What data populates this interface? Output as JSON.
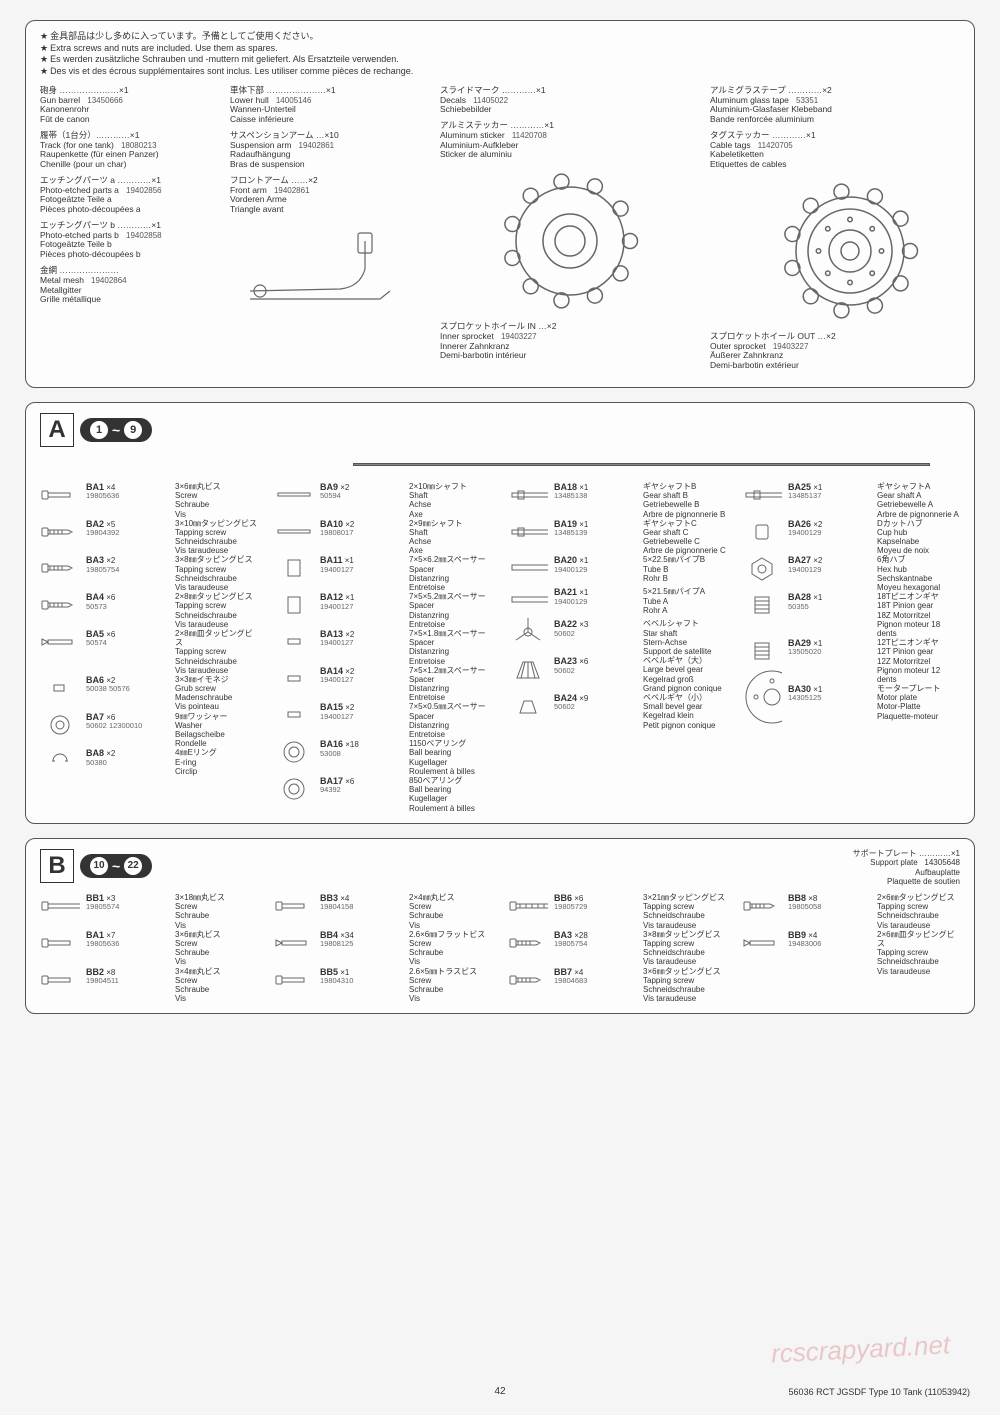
{
  "notes": {
    "jp": "金具部品は少し多めに入っています。予備としてご使用ください。",
    "en": "Extra screws and nuts are included. Use them as spares.",
    "de": "Es werden zusätzliche Schrauben und -muttern mit geliefert. Als Ersatzteile verwenden.",
    "fr": "Des vis et des écrous supplémentaires sont inclus. Les utiliser comme pièces de rechange."
  },
  "topParts": {
    "col1": [
      {
        "jp": "砲身 …………………×1",
        "en": "Gun barrel",
        "de": "Kanonenrohr",
        "fr": "Fût de canon",
        "num": "13450666"
      },
      {
        "jp": "履帯（1台分）…………×1",
        "en": "Track (for one tank)",
        "de": "Raupenkette (für einen Panzer)",
        "fr": "Chenille (pour un char)",
        "num": "18080213"
      },
      {
        "jp": "エッチングパーツ a …………×1",
        "en": "Photo-etched parts a",
        "de": "Fotogeätzte Teile a",
        "fr": "Pièces photo-découpées a",
        "num": "19402856"
      },
      {
        "jp": "エッチングパーツ b …………×1",
        "en": "Photo-etched parts b",
        "de": "Fotogeätzte Teile b",
        "fr": "Pièces photo-découpées b",
        "num": "19402858"
      },
      {
        "jp": "金網 …………………",
        "en": "Metal mesh",
        "de": "Metallgitter",
        "fr": "Grille métallique",
        "num": "19402864"
      }
    ],
    "col2": [
      {
        "jp": "車体下部 …………………×1",
        "en": "Lower hull",
        "de": "Wannen-Unterteil",
        "fr": "Caisse inférieure",
        "num": "14005146"
      },
      {
        "jp": "サスペンションアーム …×10",
        "en": "Suspension arm",
        "de": "Radaufhängung",
        "fr": "Bras de suspension",
        "num": "19402861"
      },
      {
        "jp": "フロントアーム ……×2",
        "en": "Front arm",
        "de": "Vorderen Arme",
        "fr": "Triangle avant",
        "num": "19402861"
      }
    ],
    "col3a": [
      {
        "jp": "スライドマーク …………×1",
        "en": "Decals",
        "de": "Schiebebilder",
        "fr": "",
        "num": "11405022"
      },
      {
        "jp": "アルミステッカー …………×1",
        "en": "Aluminum sticker",
        "de": "Aluminium-Aufkleber",
        "fr": "Sticker de aluminiu",
        "num": "11420708"
      }
    ],
    "col3b": {
      "jp": "スプロケットホイール IN …×2",
      "en": "Inner sprocket",
      "de": "Innerer Zahnkranz",
      "fr": "Demi-barbotin intérieur",
      "num": "19403227"
    },
    "col4a": [
      {
        "jp": "アルミグラステープ …………×2",
        "en": "Aluminum glass tape",
        "de": "Aluminium-Glasfaser Klebeband",
        "fr": "Bande renforcée aluminium",
        "num": "53351"
      },
      {
        "jp": "タグステッカー …………×1",
        "en": "Cable tags",
        "de": "Kabeletiketten",
        "fr": "Etiquettes de cables",
        "num": "11420705"
      }
    ],
    "col4b": {
      "jp": "スプロケットホイール OUT …×2",
      "en": "Outer sprocket",
      "de": "Äußerer Zahnkranz",
      "fr": "Demi-barbotin extérieur",
      "num": "19403227"
    }
  },
  "sectionA": {
    "letter": "A",
    "range": "1 ~ 9",
    "cols": [
      [
        {
          "code": "BA1",
          "qty": "×4",
          "num": "19805636",
          "jp": "3×6㎜丸ビス",
          "en": "Screw",
          "de": "Schraube",
          "fr": "Vis",
          "icon": "screw"
        },
        {
          "code": "BA2",
          "qty": "×5",
          "num": "19804392",
          "jp": "3×10㎜タッピングビス",
          "en": "Tapping screw",
          "de": "Schneidschraube",
          "fr": "Vis taraudeuse",
          "icon": "tscrew"
        },
        {
          "code": "BA3",
          "qty": "×2",
          "num": "19805754",
          "jp": "3×8㎜タッピングビス",
          "en": "Tapping screw",
          "de": "Schneidschraube",
          "fr": "Vis taraudeuse",
          "icon": "tscrew"
        },
        {
          "code": "BA4",
          "qty": "×6",
          "num": "50573",
          "jp": "2×8㎜タッピングビス",
          "en": "Tapping screw",
          "de": "Schneidschraube",
          "fr": "Vis taraudeuse",
          "icon": "tscrew"
        },
        {
          "code": "BA5",
          "qty": "×6",
          "num": "50574",
          "jp": "2×8㎜皿タッピングビス",
          "en": "Tapping screw",
          "de": "Schneidschraube",
          "fr": "Vis taraudeuse",
          "icon": "fscrew"
        },
        {
          "code": "BA6",
          "qty": "×2",
          "num": "50038 50576",
          "jp": "3×3㎜イモネジ",
          "en": "Grub screw",
          "de": "Madenschraube",
          "fr": "Vis pointeau",
          "icon": "grub"
        },
        {
          "code": "BA7",
          "qty": "×6",
          "num": "50602 12300010",
          "jp": "9㎜ワッシャー",
          "en": "Washer",
          "de": "Beilagscheibe",
          "fr": "Rondelle",
          "icon": "washer"
        },
        {
          "code": "BA8",
          "qty": "×2",
          "num": "50380",
          "jp": "4㎜Eリング",
          "en": "E-ring",
          "de": "",
          "fr": "Circlip",
          "icon": "ering"
        }
      ],
      [
        {
          "code": "BA9",
          "qty": "×2",
          "num": "50594",
          "jp": "2×10㎜シャフト",
          "en": "Shaft",
          "de": "Achse",
          "fr": "Axe",
          "icon": "shaft"
        },
        {
          "code": "BA10",
          "qty": "×2",
          "num": "19808017",
          "jp": "2×9㎜シャフト",
          "en": "Shaft",
          "de": "Achse",
          "fr": "Axe",
          "icon": "shaft"
        },
        {
          "code": "BA11",
          "qty": "×1",
          "num": "19400127",
          "jp": "7×5×6.2㎜スペーサー",
          "en": "Spacer",
          "de": "Distanzring",
          "fr": "Entretoise",
          "icon": "spacer"
        },
        {
          "code": "BA12",
          "qty": "×1",
          "num": "19400127",
          "jp": "7×5×5.2㎜スペーサー",
          "en": "Spacer",
          "de": "Distanzring",
          "fr": "Entretoise",
          "icon": "spacer"
        },
        {
          "code": "BA13",
          "qty": "×2",
          "num": "19400127",
          "jp": "7×5×1.8㎜スペーサー",
          "en": "Spacer",
          "de": "Distanzring",
          "fr": "Entretoise",
          "icon": "spacer-s"
        },
        {
          "code": "BA14",
          "qty": "×2",
          "num": "19400127",
          "jp": "7×5×1.2㎜スペーサー",
          "en": "Spacer",
          "de": "Distanzring",
          "fr": "Entretoise",
          "icon": "spacer-s"
        },
        {
          "code": "BA15",
          "qty": "×2",
          "num": "19400127",
          "jp": "7×5×0.5㎜スペーサー",
          "en": "Spacer",
          "de": "Distanzring",
          "fr": "Entretoise",
          "icon": "spacer-s"
        },
        {
          "code": "BA16",
          "qty": "×18",
          "num": "53008",
          "jp": "1150ベアリング",
          "en": "Ball bearing",
          "de": "Kugellager",
          "fr": "Roulement à billes",
          "icon": "bearing"
        },
        {
          "code": "BA17",
          "qty": "×6",
          "num": "94392",
          "jp": "850ベアリング",
          "en": "Ball bearing",
          "de": "Kugellager",
          "fr": "Roulement à billes",
          "icon": "bearing"
        }
      ],
      [
        {
          "code": "BA18",
          "qty": "×1",
          "num": "13485138",
          "jp": "ギヤシャフトB",
          "en": "Gear shaft B",
          "de": "Getriebewelle B",
          "fr": "Arbre de pignonnerie B",
          "icon": "gshaft"
        },
        {
          "code": "BA19",
          "qty": "×1",
          "num": "13485139",
          "jp": "ギヤシャフトC",
          "en": "Gear shaft C",
          "de": "Getriebewelle C",
          "fr": "Arbre de pignonnerie C",
          "icon": "gshaft"
        },
        {
          "code": "BA20",
          "qty": "×1",
          "num": "19400129",
          "jp": "5×22.5㎜パイプB",
          "en": "Tube B",
          "de": "Rohr B",
          "fr": "",
          "icon": "tube"
        },
        {
          "code": "BA21",
          "qty": "×1",
          "num": "19400129",
          "jp": "5×21.5㎜パイプA",
          "en": "Tube A",
          "de": "Rohr A",
          "fr": "",
          "icon": "tube"
        },
        {
          "code": "BA22",
          "qty": "×3",
          "num": "50602",
          "jp": "ベベルシャフト",
          "en": "Star shaft",
          "de": "Stern-Achse",
          "fr": "Support de satellite",
          "icon": "star"
        },
        {
          "code": "BA23",
          "qty": "×6",
          "num": "50602",
          "jp": "ベベルギヤ（大）",
          "en": "Large bevel gear",
          "de": "Kegelrad groß",
          "fr": "Grand pignon conique",
          "icon": "bevel-l"
        },
        {
          "code": "BA24",
          "qty": "×9",
          "num": "50602",
          "jp": "ベベルギヤ（小）",
          "en": "Small bevel gear",
          "de": "Kegelrad klein",
          "fr": "Petit pignon conique",
          "icon": "bevel-s"
        }
      ],
      [
        {
          "code": "BA25",
          "qty": "×1",
          "num": "13485137",
          "jp": "ギヤシャフトA",
          "en": "Gear shaft A",
          "de": "Getriebewelle A",
          "fr": "Arbre de pignonnerie A",
          "icon": "gshaft-l"
        },
        {
          "code": "BA26",
          "qty": "×2",
          "num": "19400129",
          "jp": "Dカットハブ",
          "en": "Cup hub",
          "de": "Kapselnabe",
          "fr": "Moyeu de noix",
          "icon": "cup"
        },
        {
          "code": "BA27",
          "qty": "×2",
          "num": "19400129",
          "jp": "6角ハブ",
          "en": "Hex hub",
          "de": "Sechskantnabe",
          "fr": "Moyeu hexagonal",
          "icon": "hex"
        },
        {
          "code": "BA28",
          "qty": "×1",
          "num": "50355",
          "jp": "18Tピニオンギヤ",
          "en": "18T Pinion gear",
          "de": "18Z Motorritzel",
          "fr": "Pignon moteur 18 dents",
          "icon": "pinion"
        },
        {
          "code": "BA29",
          "qty": "×1",
          "num": "13505020",
          "jp": "12Tピニオンギヤ",
          "en": "12T Pinion gear",
          "de": "12Z Motorritzel",
          "fr": "Pignon moteur 12 dents",
          "icon": "pinion"
        },
        {
          "code": "BA30",
          "qty": "×1",
          "num": "14305125",
          "jp": "モータープレート",
          "en": "Motor plate",
          "de": "Motor-Platte",
          "fr": "Plaquette-moteur",
          "icon": "mplate"
        }
      ]
    ]
  },
  "sectionB": {
    "letter": "B",
    "range": "10 ~ 22",
    "support": {
      "jp": "サポートプレート …………×1",
      "en": "Support plate",
      "de": "Aufbauplatte",
      "fr": "Plaquette de soutien",
      "num": "14305648"
    },
    "cols": [
      [
        {
          "code": "BB1",
          "qty": "×3",
          "num": "19805574",
          "jp": "3×18㎜丸ビス",
          "en": "Screw",
          "de": "Schraube",
          "fr": "Vis",
          "icon": "screw-l"
        },
        {
          "code": "BA1",
          "qty": "×7",
          "num": "19805636",
          "jp": "3×6㎜丸ビス",
          "en": "Screw",
          "de": "Schraube",
          "fr": "Vis",
          "icon": "screw"
        },
        {
          "code": "BB2",
          "qty": "×8",
          "num": "19804511",
          "jp": "3×4㎜丸ビス",
          "en": "Screw",
          "de": "Schraube",
          "fr": "Vis",
          "icon": "screw"
        }
      ],
      [
        {
          "code": "BB3",
          "qty": "×4",
          "num": "19804158",
          "jp": "2×4㎜丸ビス",
          "en": "Screw",
          "de": "Schraube",
          "fr": "Vis",
          "icon": "screw"
        },
        {
          "code": "BB4",
          "qty": "×34",
          "num": "19808125",
          "jp": "2.6×6㎜フラットビス",
          "en": "Screw",
          "de": "Schraube",
          "fr": "Vis",
          "icon": "fscrew"
        },
        {
          "code": "BB5",
          "qty": "×1",
          "num": "19804310",
          "jp": "2.6×5㎜トラスビス",
          "en": "Screw",
          "de": "Schraube",
          "fr": "Vis",
          "icon": "screw"
        }
      ],
      [
        {
          "code": "BB6",
          "qty": "×6",
          "num": "19805729",
          "jp": "3×21㎜タッピングビス",
          "en": "Tapping screw",
          "de": "Schneidschraube",
          "fr": "Vis taraudeuse",
          "icon": "tscrew-l"
        },
        {
          "code": "BA3",
          "qty": "×28",
          "num": "19805754",
          "jp": "3×8㎜タッピングビス",
          "en": "Tapping screw",
          "de": "Schneidschraube",
          "fr": "Vis taraudeuse",
          "icon": "tscrew"
        },
        {
          "code": "BB7",
          "qty": "×4",
          "num": "19804683",
          "jp": "3×6㎜タッピングビス",
          "en": "Tapping screw",
          "de": "Schneidschraube",
          "fr": "Vis taraudeuse",
          "icon": "tscrew"
        }
      ],
      [
        {
          "code": "BB8",
          "qty": "×8",
          "num": "19805058",
          "jp": "2×6㎜タッピングビス",
          "en": "Tapping screw",
          "de": "Schneidschraube",
          "fr": "Vis taraudeuse",
          "icon": "tscrew"
        },
        {
          "code": "BB9",
          "qty": "×4",
          "num": "19483006",
          "jp": "2×6㎜皿タッピングビス",
          "en": "Tapping screw",
          "de": "Schneidschraube",
          "fr": "Vis taraudeuse",
          "icon": "fscrew"
        }
      ]
    ]
  },
  "footer": {
    "page": "42",
    "right": "56036  RCT JGSDF Type 10 Tank (11053942)"
  },
  "colors": {
    "border": "#555555",
    "text": "#333333",
    "light": "#888888"
  }
}
